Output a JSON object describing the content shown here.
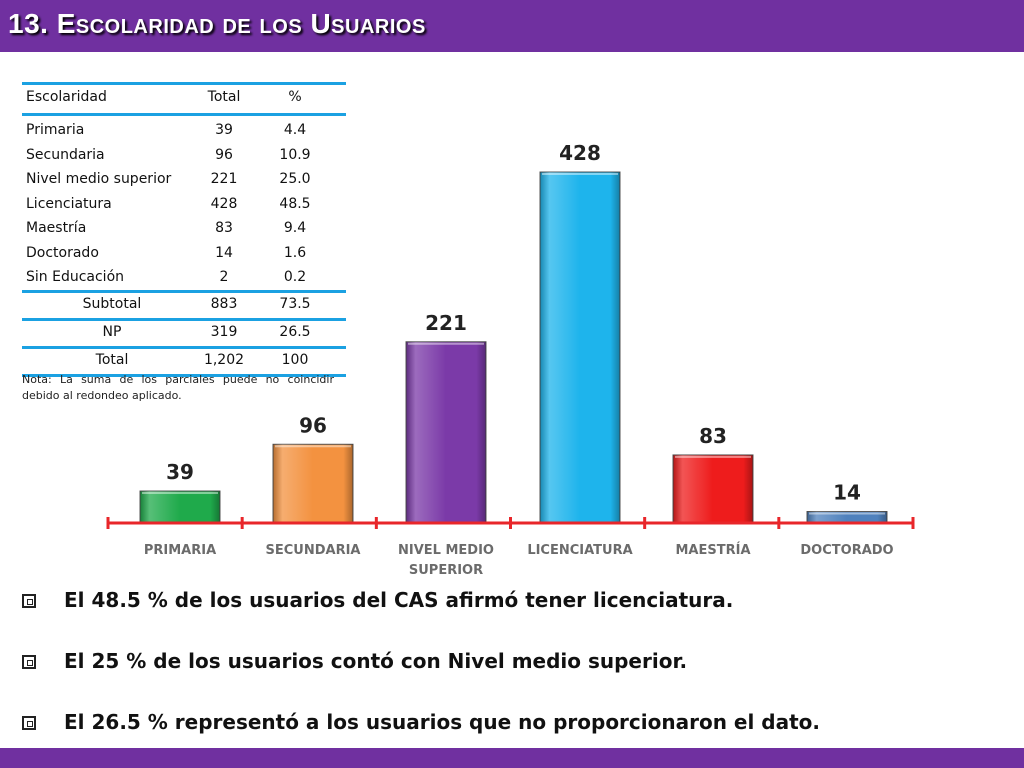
{
  "title": "13. Escolaridad de los Usuarios",
  "table": {
    "headers": [
      "Escolaridad",
      "Total",
      "%"
    ],
    "rows": [
      {
        "label": "Primaria",
        "total": "39",
        "pct": "4.4"
      },
      {
        "label": "Secundaria",
        "total": "96",
        "pct": "10.9"
      },
      {
        "label": "Nivel medio superior",
        "total": "221",
        "pct": "25.0"
      },
      {
        "label": "Licenciatura",
        "total": "428",
        "pct": "48.5"
      },
      {
        "label": "Maestría",
        "total": "83",
        "pct": "9.4"
      },
      {
        "label": "Doctorado",
        "total": "14",
        "pct": "1.6"
      },
      {
        "label": "Sin Educación",
        "total": "2",
        "pct": "0.2"
      }
    ],
    "summary": [
      {
        "label": "Subtotal",
        "total": "883",
        "pct": "73.5"
      },
      {
        "label": "NP",
        "total": "319",
        "pct": "26.5"
      },
      {
        "label": "Total",
        "total": "1,202",
        "pct": "100"
      }
    ],
    "note": "Nota: La suma de los parciales puede no coincidir debido al redondeo aplicado."
  },
  "chart_data": {
    "type": "bar",
    "categories": [
      "PRIMARIA",
      "SECUNDARIA",
      "NIVEL MEDIO SUPERIOR",
      "LICENCIATURA",
      "MAESTRÍA",
      "DOCTORADO"
    ],
    "category_lines": [
      [
        "PRIMARIA"
      ],
      [
        "SECUNDARIA"
      ],
      [
        "NIVEL MEDIO",
        "SUPERIOR"
      ],
      [
        "LICENCIATURA"
      ],
      [
        "MAESTRÍA"
      ],
      [
        "DOCTORADO"
      ]
    ],
    "values": [
      39,
      96,
      221,
      428,
      83,
      14
    ],
    "colors": [
      "#1faa4b",
      "#f39240",
      "#7b3aa8",
      "#1eb4ec",
      "#ee1c1c",
      "#4f81bd"
    ],
    "axis_color": "#e8262a",
    "title": "",
    "xlabel": "",
    "ylabel": "",
    "grid": false,
    "legend": "none"
  },
  "bullets": [
    "El 48.5 % de los usuarios del CAS afirmó tener licenciatura.",
    "El 25 % de los usuarios contó con Nivel medio superior.",
    "El  26.5 % representó a los usuarios que no proporcionaron el dato."
  ],
  "colors": {
    "title_bar": "#7030a0",
    "table_rule": "#1ba1e2"
  },
  "icons": {
    "bullet": "checkbox-bullet-icon"
  }
}
